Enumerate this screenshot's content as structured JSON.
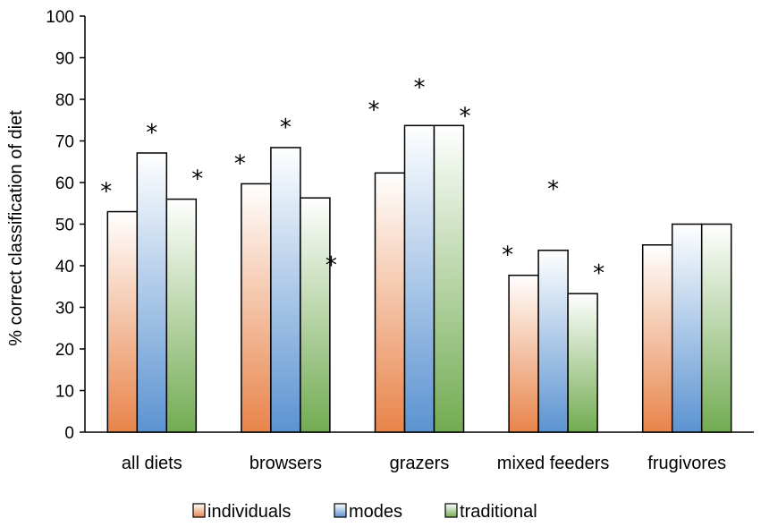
{
  "chart_data": {
    "type": "bar",
    "title": "",
    "xlabel": "",
    "ylabel": "% correct classification of diet",
    "ylim": [
      0,
      100
    ],
    "ytick_step": 10,
    "categories": [
      "all diets",
      "browsers",
      "grazers",
      "mixed feeders",
      "frugivores"
    ],
    "series": [
      {
        "name": "individuals",
        "values": [
          53,
          59.7,
          62.3,
          37.7,
          45
        ],
        "color": "#e8844a",
        "annotations": [
          "*",
          "*",
          "*",
          "*",
          ""
        ]
      },
      {
        "name": "modes",
        "values": [
          67.1,
          68.4,
          73.7,
          43.7,
          50
        ],
        "color": "#5b93d1",
        "annotations": [
          "*",
          "*",
          "*",
          "*",
          ""
        ]
      },
      {
        "name": "traditional",
        "values": [
          56,
          56.3,
          73.7,
          33.3,
          50
        ],
        "color": "#72ab52",
        "annotations": [
          "*",
          "*",
          "*",
          "*",
          ""
        ]
      }
    ],
    "legend_position": "bottom"
  }
}
